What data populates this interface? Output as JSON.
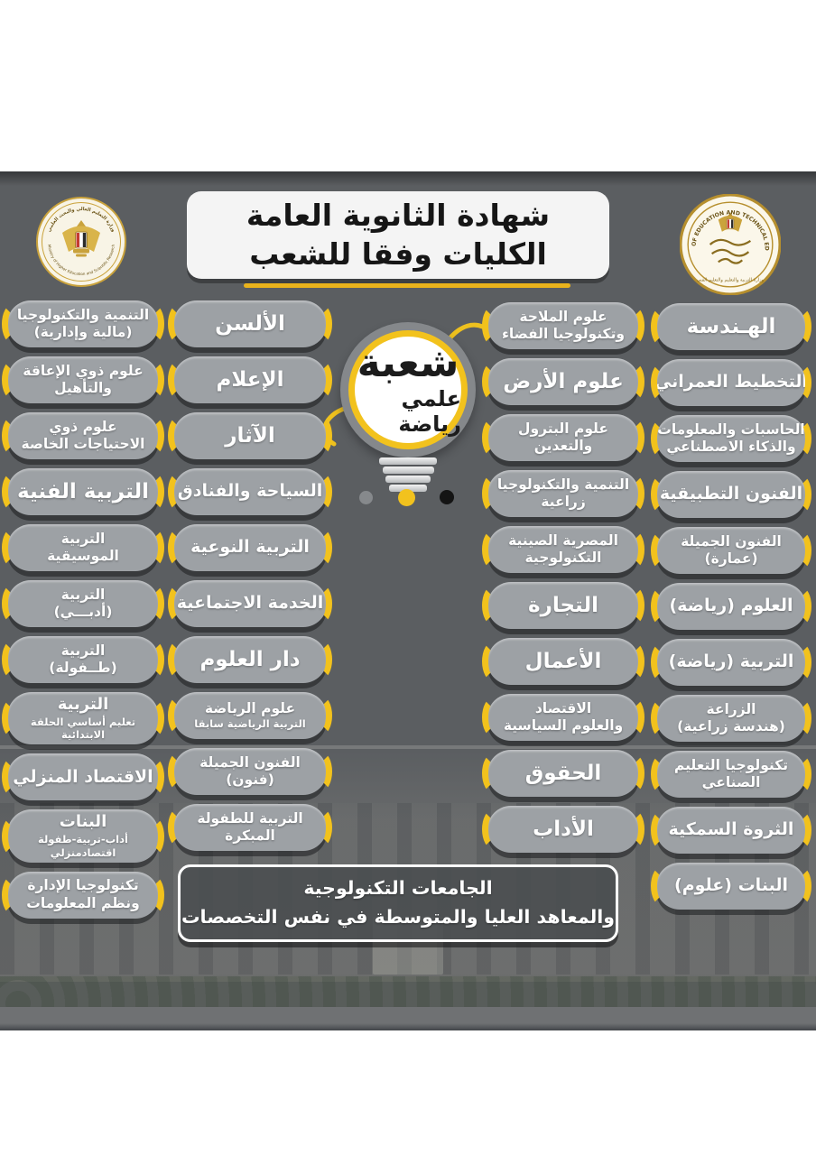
{
  "header": {
    "title_line1": "شهادة الثانوية العامة",
    "title_line2": "الكليات وفقا للشعب",
    "left_seal": {
      "top_text": "وزارة التعليم العالي والبحث العلمي",
      "bottom_text": "Ministry of Higher Education and Scientific Research"
    },
    "right_seal": {
      "ring_text": "MINISTRY OF EDUCATION AND TECHNICAL EDUCATION",
      "center_text": "وزارة التربية والتعليم والتعليم الفني"
    }
  },
  "bulb": {
    "line1": "شعبة",
    "line2": "علمي رياضة"
  },
  "columns": {
    "col_right": {
      "pills": [
        {
          "em": true,
          "lines": [
            {
              "t": "الهـندسة"
            }
          ]
        },
        {
          "lines": [
            {
              "t": "التخطيط العمراني"
            }
          ]
        },
        {
          "lines": [
            {
              "t": "الحاسبات والمعلومات"
            },
            {
              "t": "والذكاء الاصطناعي"
            }
          ]
        },
        {
          "lines": [
            {
              "t": "الفنون التطبيقية"
            }
          ]
        },
        {
          "lines": [
            {
              "t": "الفنون الجميلة"
            },
            {
              "t": "(عمارة)"
            }
          ]
        },
        {
          "lines": [
            {
              "t": "العلوم (رياضة)"
            }
          ]
        },
        {
          "lines": [
            {
              "t": "التربية (رياضة)"
            }
          ]
        },
        {
          "lines": [
            {
              "t": "الزراعة"
            },
            {
              "t": "(هندسة زراعية)"
            }
          ]
        },
        {
          "lines": [
            {
              "t": "تكنولوجيا التعليم"
            },
            {
              "t": "الصناعي"
            }
          ]
        },
        {
          "lines": [
            {
              "t": "الثروة السمكية"
            }
          ]
        },
        {
          "lines": [
            {
              "t": "البنات (علوم)"
            }
          ]
        }
      ]
    },
    "col_center_right": {
      "pills": [
        {
          "lines": [
            {
              "t": "علوم الملاحة"
            },
            {
              "t": "وتكنولوجيا الفضاء"
            }
          ]
        },
        {
          "em": true,
          "lines": [
            {
              "t": "علوم الأرض"
            }
          ]
        },
        {
          "lines": [
            {
              "t": "علوم البترول"
            },
            {
              "t": "والتعدين"
            }
          ]
        },
        {
          "lines": [
            {
              "t": "التنمية والتكنولوجيا"
            },
            {
              "t": "زراعية"
            }
          ]
        },
        {
          "lines": [
            {
              "t": "المصرية الصينية"
            },
            {
              "t": "التكنولوجية"
            }
          ]
        },
        {
          "em": true,
          "lines": [
            {
              "t": "التجارة"
            }
          ]
        },
        {
          "em": true,
          "lines": [
            {
              "t": "الأعمال"
            }
          ]
        },
        {
          "lines": [
            {
              "t": "الاقتصاد"
            },
            {
              "t": "والعلوم السياسية"
            }
          ]
        },
        {
          "em": true,
          "lines": [
            {
              "t": "الحقوق"
            }
          ]
        },
        {
          "em": true,
          "lines": [
            {
              "t": "الأداب"
            }
          ]
        }
      ]
    },
    "col_center_left": {
      "pills": [
        {
          "em": true,
          "lines": [
            {
              "t": "الألسن"
            }
          ]
        },
        {
          "em": true,
          "lines": [
            {
              "t": "الإعلام"
            }
          ]
        },
        {
          "em": true,
          "lines": [
            {
              "t": "الآثار"
            }
          ]
        },
        {
          "lines": [
            {
              "t": "السياحة والفنادق"
            }
          ]
        },
        {
          "lines": [
            {
              "t": "التربية النوعية"
            }
          ]
        },
        {
          "lines": [
            {
              "t": "الخدمة الاجتماعية"
            }
          ]
        },
        {
          "em": true,
          "lines": [
            {
              "t": "دار العلوم"
            }
          ]
        },
        {
          "lines": [
            {
              "t": "علوم الرياضة"
            },
            {
              "t": "التربية الرياضية سابقا",
              "sub": true
            }
          ]
        },
        {
          "lines": [
            {
              "t": "الفنون الجميلة"
            },
            {
              "t": "(فنون)"
            }
          ]
        },
        {
          "lines": [
            {
              "t": "التربية للطفولة"
            },
            {
              "t": "المبكرة"
            }
          ]
        }
      ]
    },
    "col_left": {
      "pills": [
        {
          "lines": [
            {
              "t": "التنمية والتكنولوجيا"
            },
            {
              "t": "(مالية وإدارية)"
            }
          ]
        },
        {
          "lines": [
            {
              "t": "علوم ذوي الإعاقة"
            },
            {
              "t": "والتأهيل"
            }
          ]
        },
        {
          "lines": [
            {
              "t": "علوم ذوي"
            },
            {
              "t": "الاحتياجات الخاصة"
            }
          ]
        },
        {
          "em": true,
          "lines": [
            {
              "t": "التربية الفنية"
            }
          ]
        },
        {
          "lines": [
            {
              "t": "التربية"
            },
            {
              "t": "الموسيقية"
            }
          ]
        },
        {
          "lines": [
            {
              "t": "التربية"
            },
            {
              "t": "(أدبـــي)"
            }
          ]
        },
        {
          "lines": [
            {
              "t": "التربية"
            },
            {
              "t": "(طــفولة)"
            }
          ]
        },
        {
          "lines": [
            {
              "t": "التربية"
            },
            {
              "t": "تعليم أساسي الحلقة",
              "sub": true
            },
            {
              "t": "الابتدائية",
              "sub": true
            }
          ]
        },
        {
          "lines": [
            {
              "t": "الاقتصاد المنزلي"
            }
          ]
        },
        {
          "lines": [
            {
              "t": "البنات"
            },
            {
              "t": "أداب-تربية-طفولة",
              "sub": true
            },
            {
              "t": "اقتصادمنزلي",
              "sub": true
            }
          ]
        },
        {
          "lines": [
            {
              "t": "تكنولوجيا الإدارة"
            },
            {
              "t": "ونظم المعلومات"
            }
          ]
        }
      ]
    }
  },
  "footer": {
    "line1": "الجامعات التكنولوجية",
    "line2": "والمعاهد العليا والمتوسطة في نفس التخصصات"
  },
  "colors": {
    "panel-bg": "#5b5e61",
    "pill-bg": "#9da1a5",
    "accent": "#f2c21d",
    "gold": "#c9a23c"
  }
}
